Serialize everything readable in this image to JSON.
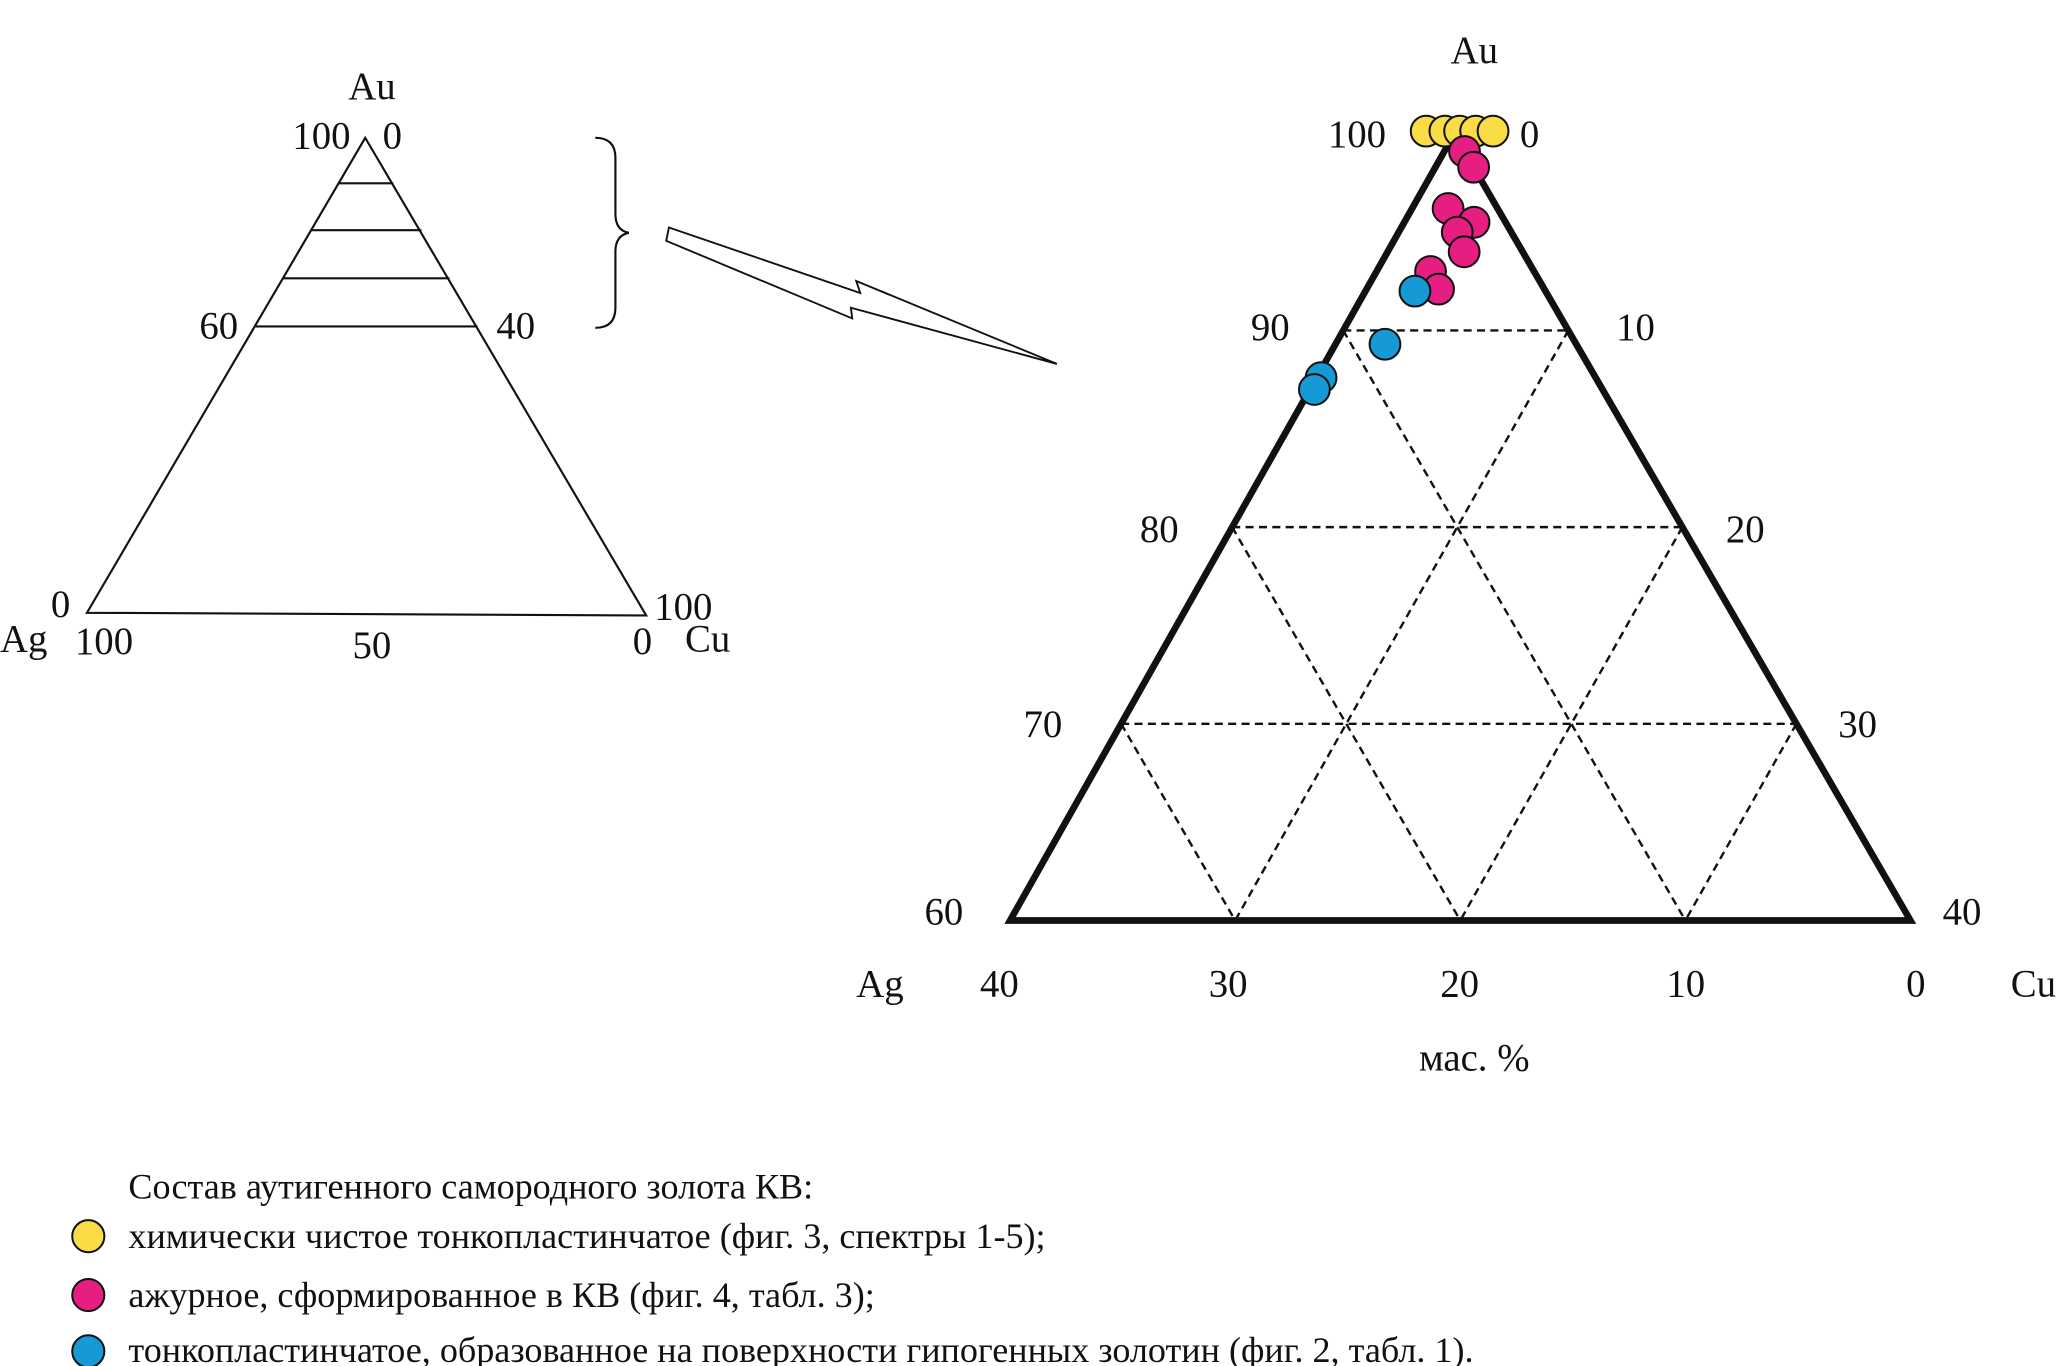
{
  "chart_data": {
    "type": "ternary-scatter",
    "unit_label": "мас. %",
    "vertices": {
      "top": "Au",
      "left": "Ag",
      "right": "Cu"
    },
    "ranges": {
      "Au": [
        60,
        100
      ],
      "Ag": [
        0,
        40
      ],
      "Cu": [
        0,
        40
      ]
    },
    "grid": "dashed, 10% step",
    "left_ticks": [
      "60",
      "70",
      "80",
      "90",
      "100"
    ],
    "right_ticks": [
      "0",
      "10",
      "20",
      "30",
      "40"
    ],
    "bottom_ticks": [
      "40",
      "30",
      "20",
      "10",
      "0"
    ],
    "series": [
      {
        "key": "yellow",
        "color": "#fadc46",
        "points": [
          {
            "Au": 100,
            "Ag": 0,
            "Cu": 0
          },
          {
            "Au": 100,
            "Ag": 0,
            "Cu": 0
          },
          {
            "Au": 100,
            "Ag": 0,
            "Cu": 0
          },
          {
            "Au": 100,
            "Ag": 0,
            "Cu": 0
          },
          {
            "Au": 100,
            "Ag": 0,
            "Cu": 0
          }
        ]
      },
      {
        "key": "pink",
        "color": "#e61e82",
        "points": [
          {
            "Au": 99.1,
            "Ag": 0,
            "Cu": 0.9
          },
          {
            "Au": 98.3,
            "Ag": 0,
            "Cu": 1.7
          },
          {
            "Au": 96.2,
            "Ag": 2.2,
            "Cu": 1.6
          },
          {
            "Au": 95.5,
            "Ag": 1.4,
            "Cu": 3.1
          },
          {
            "Au": 95.0,
            "Ag": 2.4,
            "Cu": 2.6
          },
          {
            "Au": 94.0,
            "Ag": 2.6,
            "Cu": 3.4
          },
          {
            "Au": 93.0,
            "Ag": 4.6,
            "Cu": 2.4
          },
          {
            "Au": 92.1,
            "Ag": 4.7,
            "Cu": 3.2
          }
        ]
      },
      {
        "key": "blue",
        "color": "#169ad6",
        "points": [
          {
            "Au": 92.0,
            "Ag": 5.8,
            "Cu": 2.2
          },
          {
            "Au": 89.3,
            "Ag": 8.5,
            "Cu": 2.2
          },
          {
            "Au": 87.6,
            "Ag": 12.2,
            "Cu": 0.2
          },
          {
            "Au": 87.0,
            "Ag": 12.8,
            "Cu": 0.2
          }
        ]
      }
    ]
  },
  "overview": {
    "vertex_top": "Au",
    "vertex_left": "Ag",
    "vertex_right": "Cu",
    "top_left_tick": "100",
    "top_right_tick": "0",
    "mid_left_tick": "60",
    "mid_right_tick": "40",
    "left_corner_top": "0",
    "left_corner_bottom": "100",
    "right_corner_top": "100",
    "right_corner_bottom": "0",
    "bottom_mid": "50"
  },
  "legend": {
    "title": "Состав аутигенного самородного золота КВ:",
    "items": [
      {
        "color": "#fadc46",
        "label": "химически чистое тонкопластинчатое (фиг. 3, спектры 1-5);"
      },
      {
        "color": "#e61e82",
        "label": "ажурное, сформированное в КВ (фиг. 4, табл. 3);"
      },
      {
        "color": "#169ad6",
        "label": "тонкопластинчатое, образованное на поверхности гипогенных золотин (фиг. 2, табл. 1)."
      }
    ]
  }
}
